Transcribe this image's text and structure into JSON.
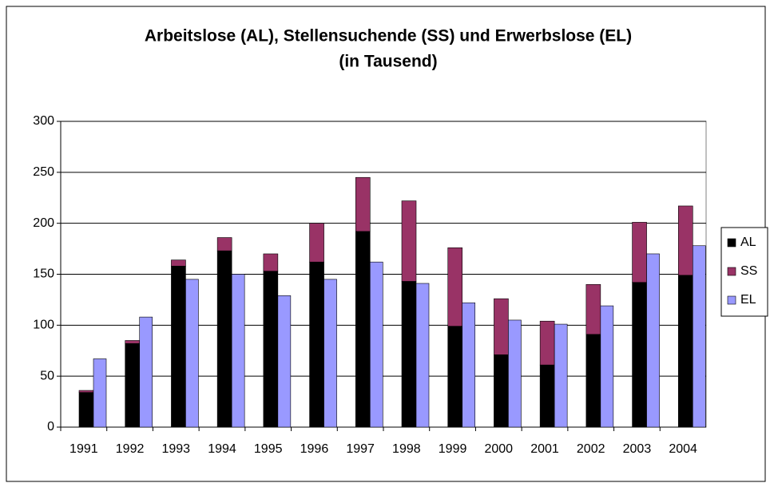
{
  "chart_data": {
    "type": "bar",
    "title": "Arbeitslose (AL), Stellensuchende (SS) und Erwerbslose (EL)",
    "subtitle": "(in Tausend)",
    "categories": [
      "1991",
      "1992",
      "1993",
      "1994",
      "1995",
      "1996",
      "1997",
      "1998",
      "1999",
      "2000",
      "2001",
      "2002",
      "2003",
      "2004"
    ],
    "series": [
      {
        "name": "AL",
        "color": "#000000",
        "values": [
          34,
          82,
          158,
          173,
          153,
          162,
          192,
          143,
          99,
          71,
          61,
          91,
          142,
          149
        ]
      },
      {
        "name": "SS",
        "color": "#993366",
        "values": [
          2,
          3,
          6,
          13,
          17,
          38,
          53,
          79,
          77,
          55,
          43,
          49,
          59,
          68
        ]
      },
      {
        "name": "EL",
        "color": "#9999ff",
        "values": [
          67,
          108,
          145,
          150,
          129,
          145,
          162,
          141,
          122,
          105,
          101,
          119,
          170,
          178
        ]
      }
    ],
    "ylim": [
      0,
      300
    ],
    "yticks": [
      0,
      50,
      100,
      150,
      200,
      250,
      300
    ],
    "grid": true,
    "legend": "right"
  }
}
